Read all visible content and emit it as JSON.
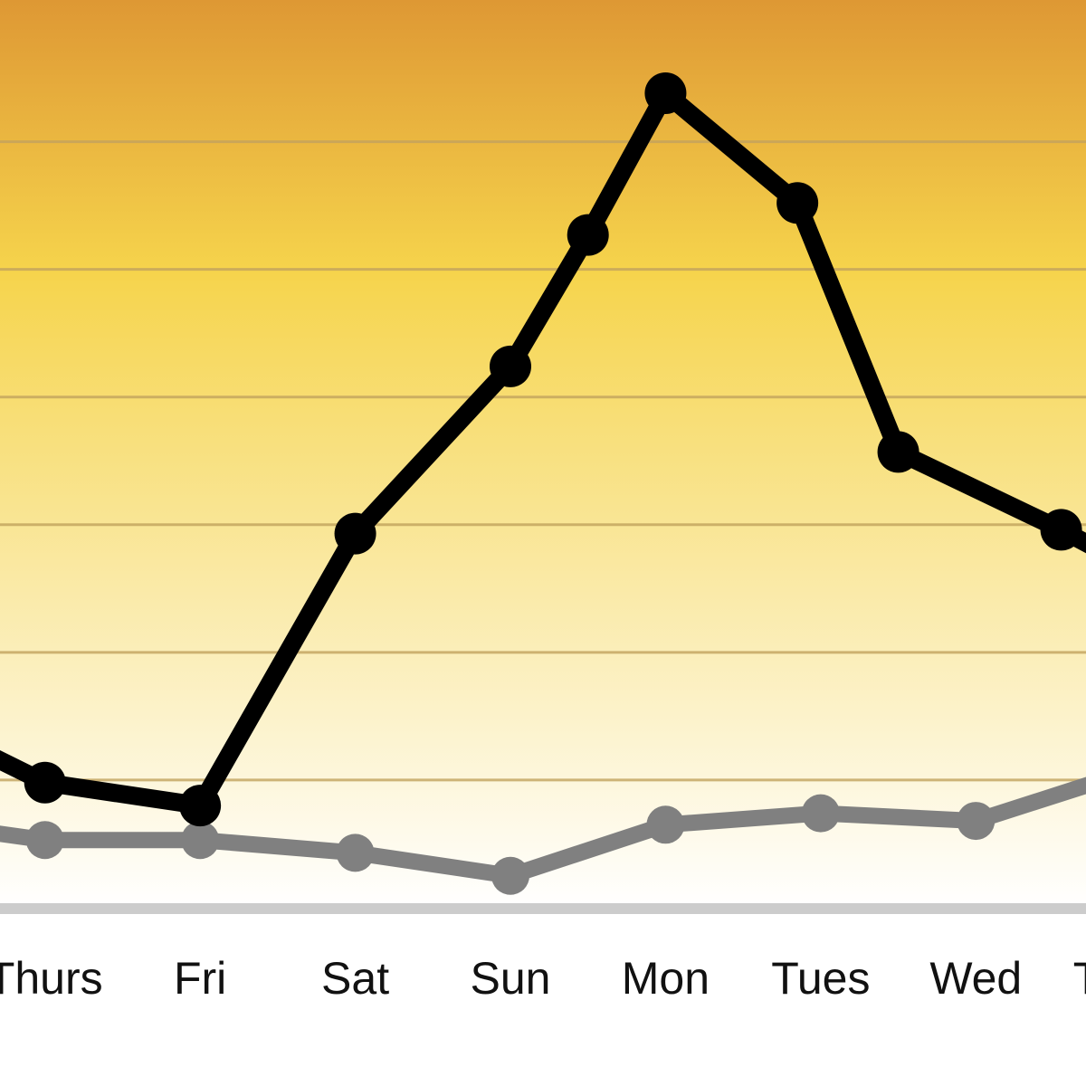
{
  "chart_data": {
    "type": "line",
    "xlim": [
      -0.29,
      6.71
    ],
    "ylim": [
      0,
      71.1
    ],
    "yticks": [
      10,
      20,
      30,
      40,
      50,
      60
    ],
    "xticks": [
      {
        "value": 0,
        "label": "Thurs"
      },
      {
        "value": 1,
        "label": "Fri"
      },
      {
        "value": 2,
        "label": "Sat"
      },
      {
        "value": 3,
        "label": "Sun"
      },
      {
        "value": 4,
        "label": "Mon"
      },
      {
        "value": 5,
        "label": "Tues"
      },
      {
        "value": 6,
        "label": "Wed"
      },
      {
        "value": 7,
        "label": "Thurs"
      }
    ],
    "grid": true,
    "series": [
      {
        "color": "#000000",
        "x": [
          -1,
          0,
          1,
          2,
          3,
          3.5,
          4,
          4.85,
          5.5,
          6.55,
          7
        ],
        "values": [
          15.8,
          9.8,
          8.0,
          29.3,
          42.4,
          52.7,
          63.8,
          55.2,
          35.7,
          29.6,
          26.7
        ]
      },
      {
        "color": "#808080",
        "x": [
          -1,
          0,
          1,
          2,
          3,
          4,
          5,
          6,
          7
        ],
        "values": [
          7.0,
          5.3,
          5.3,
          4.3,
          2.5,
          6.5,
          7.4,
          6.8,
          10.7
        ]
      }
    ]
  }
}
